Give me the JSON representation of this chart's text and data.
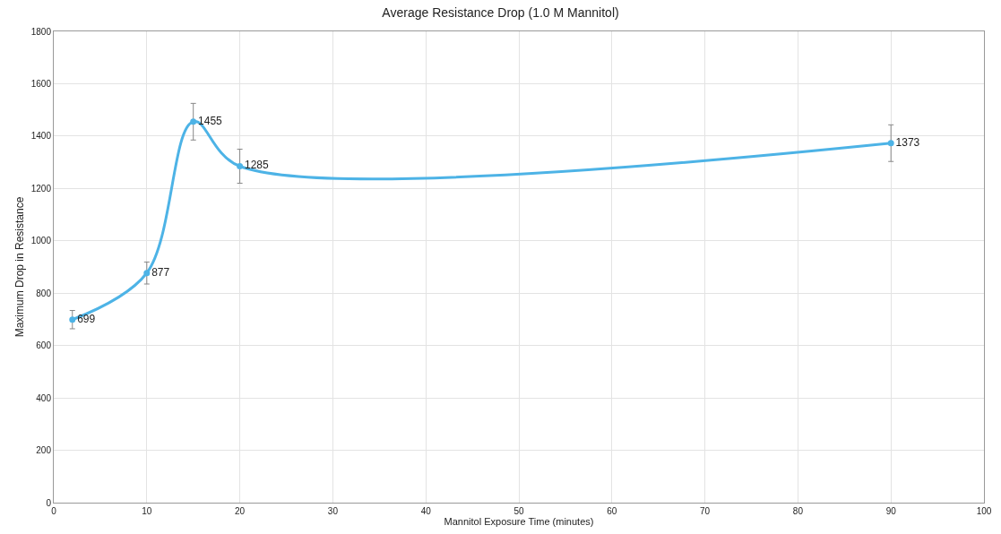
{
  "chart_data": {
    "type": "line",
    "title": "Average Resistance Drop (1.0 M Mannitol)",
    "xlabel": "Mannitol Exposure Time (minutes)",
    "ylabel": "Maximum Drop in Resistance",
    "x": [
      2,
      10,
      15,
      20,
      90
    ],
    "series": [
      {
        "color": "#4db3e6",
        "values": [
          699,
          877,
          1455,
          1285,
          1373
        ],
        "errors": [
          35,
          42,
          70,
          65,
          70
        ]
      }
    ],
    "xlim": [
      0,
      100
    ],
    "xticks": [
      0,
      10,
      20,
      30,
      40,
      50,
      60,
      70,
      80,
      90,
      100
    ],
    "ylim": [
      0,
      1800
    ],
    "yticks": [
      0,
      200,
      400,
      600,
      800,
      1000,
      1200,
      1400,
      1600,
      1800
    ],
    "grid": true,
    "marker": "circle",
    "line_style": "solid",
    "data_labels": true
  }
}
